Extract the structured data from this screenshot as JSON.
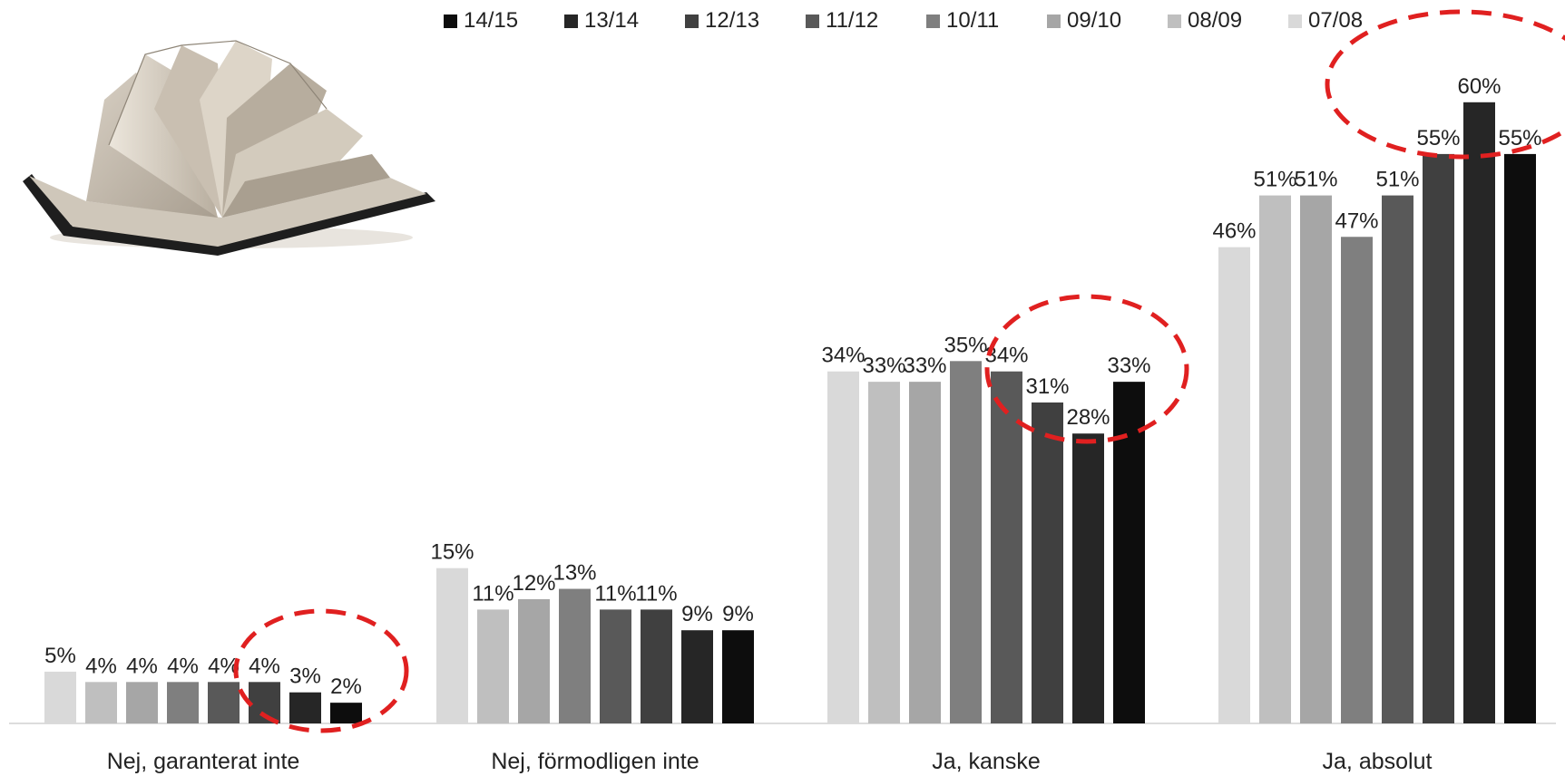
{
  "chart_data": {
    "type": "bar",
    "categories": [
      "Nej, garanterat inte",
      "Nej, förmodligen inte",
      "Ja, kanske",
      "Ja, absolut"
    ],
    "series": [
      {
        "name": "07/08",
        "color": "#d9d9d9",
        "values": [
          5,
          15,
          34,
          46
        ],
        "labels": [
          "5%",
          "15%",
          "34%",
          "46%"
        ]
      },
      {
        "name": "08/09",
        "color": "#bfbfbf",
        "values": [
          4,
          11,
          33,
          51
        ],
        "labels": [
          "4%",
          "11%",
          "33%",
          "51%"
        ]
      },
      {
        "name": "09/10",
        "color": "#a6a6a6",
        "values": [
          4,
          12,
          33,
          51
        ],
        "labels": [
          "4%",
          "12%",
          "33%",
          "51%"
        ]
      },
      {
        "name": "10/11",
        "color": "#7f7f7f",
        "values": [
          4,
          13,
          35,
          47
        ],
        "labels": [
          "4%",
          "13%",
          "35%",
          "47%"
        ]
      },
      {
        "name": "11/12",
        "color": "#595959",
        "values": [
          4,
          11,
          34,
          51
        ],
        "labels": [
          "4%",
          "11%",
          "34%",
          "51%"
        ]
      },
      {
        "name": "12/13",
        "color": "#404040",
        "values": [
          4,
          11,
          31,
          55
        ],
        "labels": [
          "4%",
          "11%",
          "31%",
          "55%"
        ]
      },
      {
        "name": "13/14",
        "color": "#262626",
        "values": [
          3,
          9,
          28,
          60
        ],
        "labels": [
          "3%",
          "9%",
          "28%",
          "60%"
        ]
      },
      {
        "name": "14/15",
        "color": "#0d0d0d",
        "values": [
          2,
          9,
          33,
          55
        ],
        "labels": [
          "2%",
          "9%",
          "33%",
          "55%"
        ]
      }
    ],
    "legend_order": [
      "14/15",
      "13/14",
      "12/13",
      "11/12",
      "10/11",
      "09/10",
      "08/09",
      "07/08"
    ],
    "legend_position": "top",
    "title": "",
    "xlabel": "",
    "ylabel": "",
    "ylim": [
      0,
      60
    ],
    "grid": false,
    "highlight_color": "#e02020",
    "highlight_icon": "dashed-circle-highlight",
    "decoration_icon": "open-book-icon"
  }
}
